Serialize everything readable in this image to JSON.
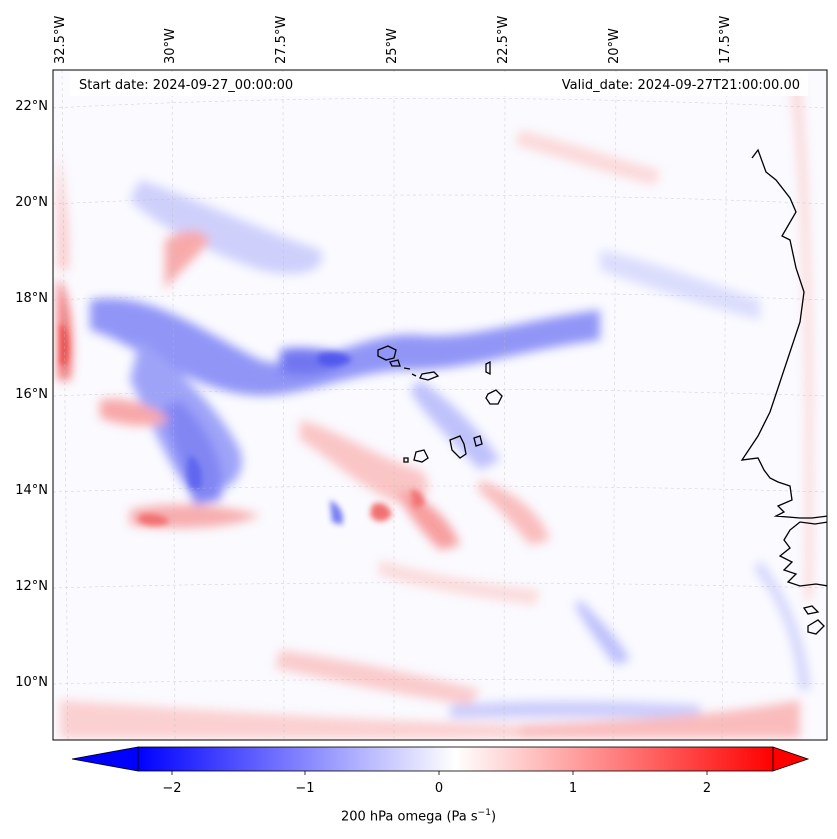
{
  "header": {
    "start_date": "Start date: 2024-09-27_00:00:00",
    "valid_date": "Valid_date: 2024-09-27T21:00:00.00"
  },
  "map": {
    "lon_labels": [
      "32.5°W",
      "30°W",
      "27.5°W",
      "25°W",
      "22.5°W",
      "20°W",
      "17.5°W"
    ],
    "lat_labels": [
      "22°N",
      "20°N",
      "18°N",
      "16°N",
      "14°N",
      "12°N",
      "10°N"
    ],
    "lon_range": [
      -33.5,
      -15.5
    ],
    "lat_range": [
      8.8,
      22.8
    ],
    "gridlines": true,
    "field_colormap": "bwr",
    "land_color": "#ffffff",
    "coast_color": "#000000"
  },
  "colorbar": {
    "title_prefix": "200 hPa omega (Pa s",
    "title_sup": "−1",
    "title_suffix": ")",
    "tick_labels": [
      "−2",
      "−1",
      "0",
      "1",
      "2"
    ],
    "range": [
      -2.7,
      2.7
    ],
    "colors": {
      "min": "#0000ff",
      "mid": "#ffffff",
      "max": "#ff0000"
    },
    "extend": "both"
  }
}
